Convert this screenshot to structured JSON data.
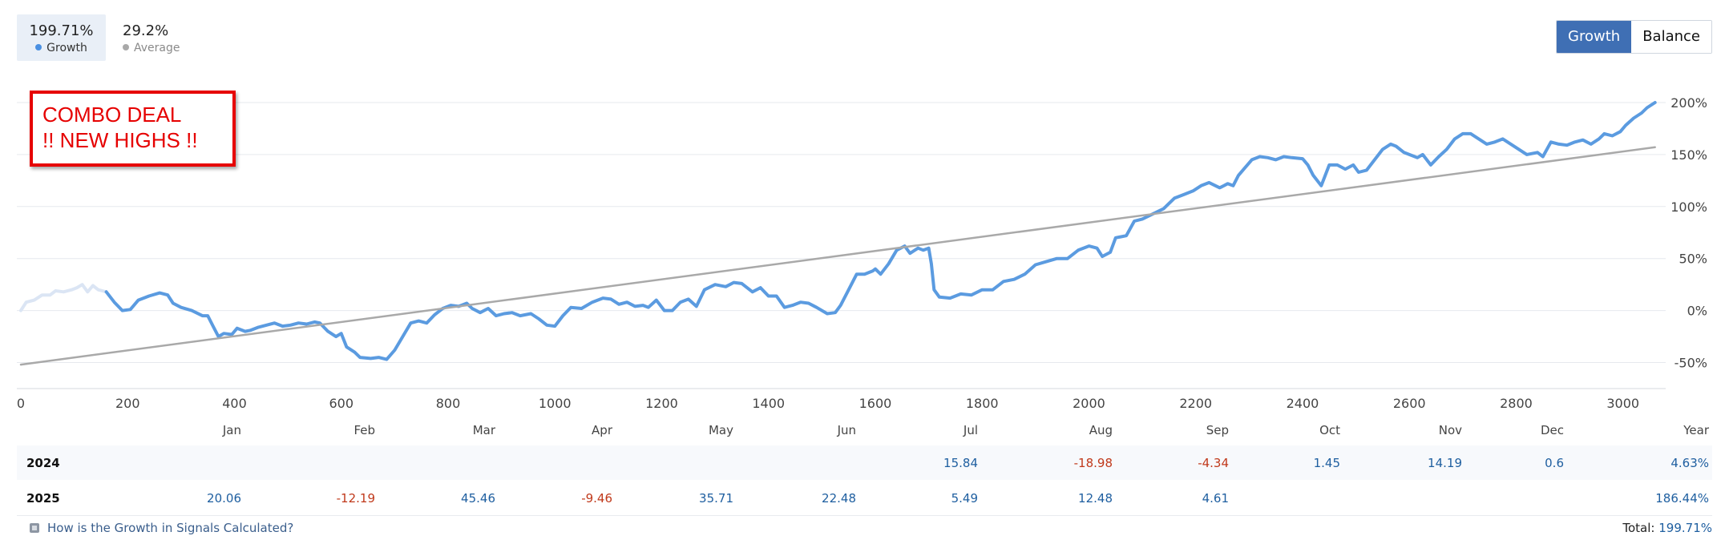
{
  "stats": {
    "growth": {
      "value": "199.71%",
      "label": "Growth",
      "color": "#4a90e2"
    },
    "average": {
      "value": "29.2%",
      "label": "Average",
      "color": "#a9a9a9"
    }
  },
  "toggle": {
    "options": [
      "Growth",
      "Balance"
    ],
    "active": "Growth",
    "active_color": "#3f6fb4"
  },
  "annotation": {
    "line1": "COMBO DEAL",
    "line2": "!! NEW HIGHS !!",
    "color": "#e60000"
  },
  "chart_data": {
    "type": "line",
    "grid": true,
    "x_ticks": [
      0,
      200,
      400,
      600,
      800,
      1000,
      1200,
      1400,
      1600,
      1800,
      2000,
      2200,
      2400,
      2600,
      2800,
      3000
    ],
    "y_ticks": [
      200,
      150,
      100,
      50,
      0,
      -50
    ],
    "y_tick_labels": [
      "200%",
      "150%",
      "100%",
      "50%",
      "0%",
      "-50%"
    ],
    "xlim": [
      0,
      3080
    ],
    "ylim": [
      -75,
      210
    ],
    "series": [
      {
        "role": "growth-early",
        "color": "#dbe5f4",
        "points": [
          [
            0,
            0
          ],
          [
            10,
            8
          ],
          [
            25,
            10
          ],
          [
            40,
            15
          ],
          [
            55,
            15
          ],
          [
            65,
            19
          ],
          [
            80,
            18
          ],
          [
            95,
            20
          ],
          [
            105,
            22
          ],
          [
            115,
            25
          ],
          [
            125,
            18
          ],
          [
            135,
            24
          ],
          [
            145,
            20
          ],
          [
            160,
            18
          ]
        ]
      },
      {
        "role": "growth",
        "color": "#5b9be0",
        "points": [
          [
            160,
            18
          ],
          [
            175,
            8
          ],
          [
            190,
            0
          ],
          [
            205,
            1
          ],
          [
            220,
            10
          ],
          [
            240,
            14
          ],
          [
            260,
            17
          ],
          [
            275,
            15
          ],
          [
            285,
            7
          ],
          [
            300,
            3
          ],
          [
            320,
            0
          ],
          [
            340,
            -5
          ],
          [
            350,
            -5
          ],
          [
            360,
            -15
          ],
          [
            370,
            -25
          ],
          [
            380,
            -22
          ],
          [
            395,
            -23
          ],
          [
            405,
            -17
          ],
          [
            420,
            -20
          ],
          [
            430,
            -19
          ],
          [
            445,
            -16
          ],
          [
            460,
            -14
          ],
          [
            475,
            -12
          ],
          [
            490,
            -15
          ],
          [
            505,
            -14
          ],
          [
            520,
            -12
          ],
          [
            535,
            -13
          ],
          [
            550,
            -11
          ],
          [
            560,
            -12
          ],
          [
            575,
            -20
          ],
          [
            590,
            -25
          ],
          [
            600,
            -22
          ],
          [
            610,
            -35
          ],
          [
            625,
            -40
          ],
          [
            635,
            -45
          ],
          [
            655,
            -46
          ],
          [
            670,
            -45
          ],
          [
            685,
            -47
          ],
          [
            700,
            -38
          ],
          [
            715,
            -25
          ],
          [
            730,
            -12
          ],
          [
            745,
            -10
          ],
          [
            760,
            -12
          ],
          [
            775,
            -4
          ],
          [
            790,
            2
          ],
          [
            805,
            5
          ],
          [
            820,
            4
          ],
          [
            835,
            7
          ],
          [
            845,
            2
          ],
          [
            860,
            -2
          ],
          [
            875,
            2
          ],
          [
            890,
            -5
          ],
          [
            905,
            -3
          ],
          [
            920,
            -2
          ],
          [
            935,
            -5
          ],
          [
            955,
            -3
          ],
          [
            970,
            -8
          ],
          [
            985,
            -14
          ],
          [
            1000,
            -15
          ],
          [
            1015,
            -5
          ],
          [
            1030,
            3
          ],
          [
            1050,
            2
          ],
          [
            1070,
            8
          ],
          [
            1090,
            12
          ],
          [
            1105,
            11
          ],
          [
            1120,
            6
          ],
          [
            1135,
            8
          ],
          [
            1150,
            4
          ],
          [
            1165,
            5
          ],
          [
            1175,
            3
          ],
          [
            1190,
            10
          ],
          [
            1205,
            0
          ],
          [
            1220,
            0
          ],
          [
            1235,
            8
          ],
          [
            1250,
            11
          ],
          [
            1265,
            4
          ],
          [
            1280,
            20
          ],
          [
            1300,
            25
          ],
          [
            1320,
            23
          ],
          [
            1335,
            27
          ],
          [
            1350,
            26
          ],
          [
            1370,
            18
          ],
          [
            1385,
            22
          ],
          [
            1400,
            14
          ],
          [
            1415,
            14
          ],
          [
            1430,
            3
          ],
          [
            1445,
            5
          ],
          [
            1460,
            8
          ],
          [
            1475,
            7
          ],
          [
            1490,
            3
          ],
          [
            1510,
            -3
          ],
          [
            1525,
            -2
          ],
          [
            1535,
            5
          ],
          [
            1550,
            20
          ],
          [
            1565,
            35
          ],
          [
            1580,
            35
          ],
          [
            1595,
            38
          ],
          [
            1600,
            40
          ],
          [
            1610,
            35
          ],
          [
            1625,
            45
          ],
          [
            1640,
            58
          ],
          [
            1655,
            62
          ],
          [
            1665,
            55
          ],
          [
            1680,
            60
          ],
          [
            1690,
            58
          ],
          [
            1700,
            60
          ],
          [
            1705,
            45
          ],
          [
            1710,
            20
          ],
          [
            1720,
            13
          ],
          [
            1740,
            12
          ],
          [
            1760,
            16
          ],
          [
            1780,
            15
          ],
          [
            1800,
            20
          ],
          [
            1820,
            20
          ],
          [
            1840,
            28
          ],
          [
            1860,
            30
          ],
          [
            1880,
            35
          ],
          [
            1900,
            44
          ],
          [
            1920,
            47
          ],
          [
            1940,
            50
          ],
          [
            1960,
            50
          ],
          [
            1980,
            58
          ],
          [
            2000,
            62
          ],
          [
            2015,
            60
          ],
          [
            2025,
            52
          ],
          [
            2040,
            56
          ],
          [
            2050,
            70
          ],
          [
            2070,
            72
          ],
          [
            2085,
            86
          ],
          [
            2100,
            88
          ],
          [
            2120,
            93
          ],
          [
            2140,
            98
          ],
          [
            2160,
            108
          ],
          [
            2180,
            112
          ],
          [
            2195,
            115
          ],
          [
            2210,
            120
          ],
          [
            2225,
            123
          ],
          [
            2245,
            118
          ],
          [
            2260,
            122
          ],
          [
            2270,
            120
          ],
          [
            2280,
            130
          ],
          [
            2290,
            136
          ],
          [
            2305,
            145
          ],
          [
            2320,
            148
          ],
          [
            2335,
            147
          ],
          [
            2350,
            145
          ],
          [
            2365,
            148
          ],
          [
            2380,
            147
          ],
          [
            2400,
            146
          ],
          [
            2410,
            140
          ],
          [
            2420,
            130
          ],
          [
            2435,
            120
          ],
          [
            2450,
            140
          ],
          [
            2465,
            140
          ],
          [
            2480,
            136
          ],
          [
            2495,
            140
          ],
          [
            2505,
            133
          ],
          [
            2520,
            135
          ],
          [
            2535,
            145
          ],
          [
            2550,
            155
          ],
          [
            2565,
            160
          ],
          [
            2575,
            158
          ],
          [
            2590,
            152
          ],
          [
            2600,
            150
          ],
          [
            2615,
            147
          ],
          [
            2625,
            150
          ],
          [
            2640,
            140
          ],
          [
            2655,
            148
          ],
          [
            2670,
            155
          ],
          [
            2685,
            165
          ],
          [
            2700,
            170
          ],
          [
            2715,
            170
          ],
          [
            2730,
            165
          ],
          [
            2745,
            160
          ],
          [
            2760,
            162
          ],
          [
            2775,
            165
          ],
          [
            2790,
            160
          ],
          [
            2805,
            155
          ],
          [
            2820,
            150
          ],
          [
            2840,
            152
          ],
          [
            2850,
            148
          ],
          [
            2865,
            162
          ],
          [
            2880,
            160
          ],
          [
            2895,
            159
          ],
          [
            2910,
            162
          ],
          [
            2925,
            164
          ],
          [
            2940,
            160
          ],
          [
            2955,
            165
          ],
          [
            2965,
            170
          ],
          [
            2980,
            168
          ],
          [
            2995,
            172
          ],
          [
            3005,
            178
          ],
          [
            3020,
            185
          ],
          [
            3035,
            190
          ],
          [
            3045,
            195
          ],
          [
            3060,
            200
          ]
        ]
      },
      {
        "role": "trend",
        "color": "#a9a9a9",
        "points": [
          [
            0,
            -52
          ],
          [
            3060,
            157
          ]
        ]
      }
    ]
  },
  "table": {
    "months": [
      "Jan",
      "Feb",
      "Mar",
      "Apr",
      "May",
      "Jun",
      "Jul",
      "Aug",
      "Sep",
      "Oct",
      "Nov",
      "Dec"
    ],
    "year_header": "Year",
    "rows": [
      {
        "year": "2024",
        "values": [
          "",
          "",
          "",
          "",
          "",
          "",
          "15.84",
          "-18.98",
          "-4.34",
          "1.45",
          "14.19",
          "0.6"
        ],
        "total": "4.63%"
      },
      {
        "year": "2025",
        "values": [
          "20.06",
          "-12.19",
          "45.46",
          "-9.46",
          "35.71",
          "22.48",
          "5.49",
          "12.48",
          "4.61",
          "",
          "",
          ""
        ],
        "total": "186.44%"
      }
    ],
    "positive_color": "#1f5fa0",
    "negative_color": "#c0391b"
  },
  "footer": {
    "help_text": "How is the Growth in Signals Calculated?",
    "total_label": "Total:",
    "total_value": "199.71%"
  }
}
